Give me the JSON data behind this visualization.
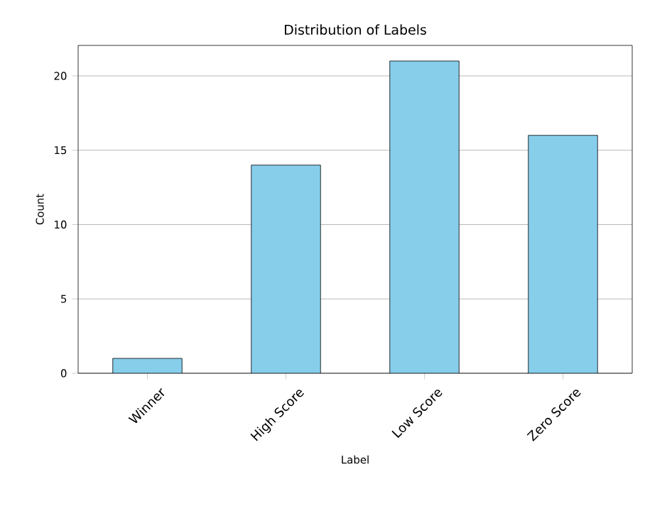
{
  "chart_data": {
    "type": "bar",
    "title": "Distribution of Labels",
    "xlabel": "Label",
    "ylabel": "Count",
    "categories": [
      "Winner",
      "High Score",
      "Low Score",
      "Zero Score"
    ],
    "values": [
      1,
      14,
      21,
      16
    ],
    "color": "#87ceeb",
    "ylim": [
      0,
      22.05
    ],
    "yticks": [
      0,
      5,
      10,
      15,
      20
    ],
    "grid": "y"
  }
}
